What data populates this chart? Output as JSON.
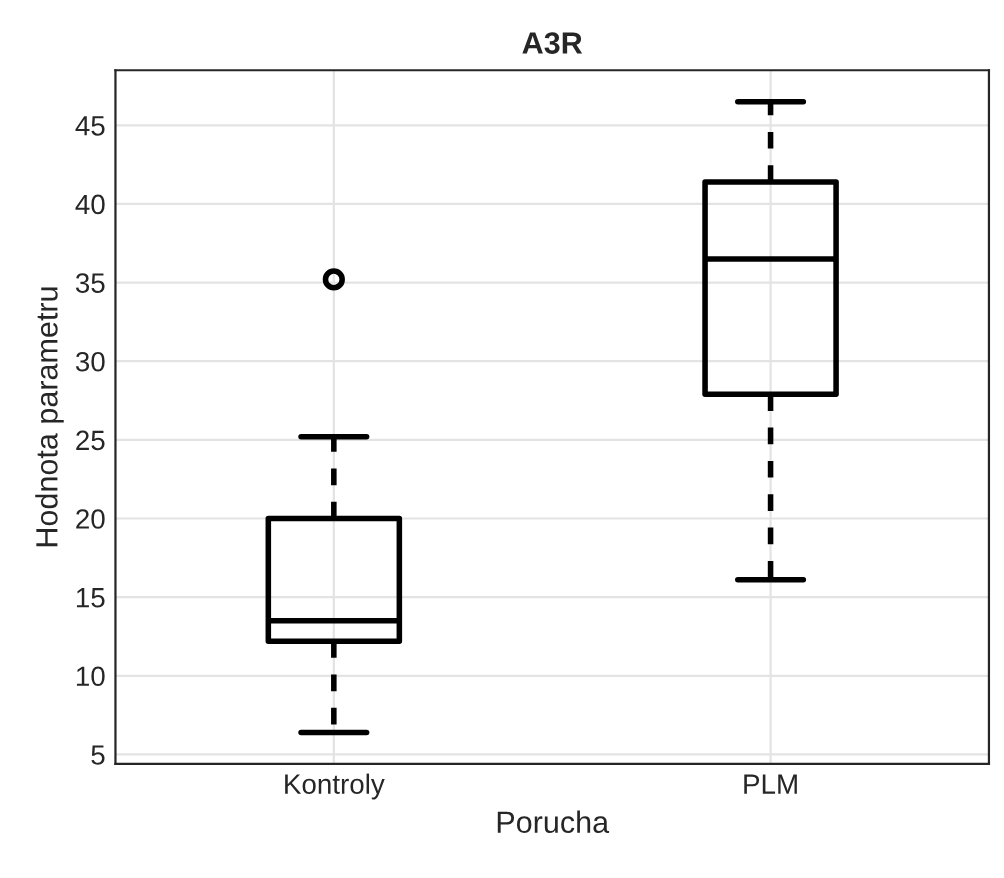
{
  "chart_data": {
    "type": "box",
    "title": "A3R",
    "xlabel": "Porucha",
    "ylabel": "Hodnota parametru",
    "categories": [
      "Kontroly",
      "PLM"
    ],
    "boxes": [
      {
        "low": 6.4,
        "q1": 12.2,
        "median": 13.5,
        "q3": 20.0,
        "high": 25.2,
        "outliers": [
          35.2
        ]
      },
      {
        "low": 16.1,
        "q1": 27.9,
        "median": 36.5,
        "q3": 41.4,
        "high": 46.5
      }
    ],
    "color": "#000000",
    "ylim": [
      4.4,
      48.5
    ],
    "yticks": [
      5,
      10,
      15,
      20,
      25,
      30,
      35,
      40,
      45
    ],
    "grid": true,
    "line_style": "dashed"
  }
}
